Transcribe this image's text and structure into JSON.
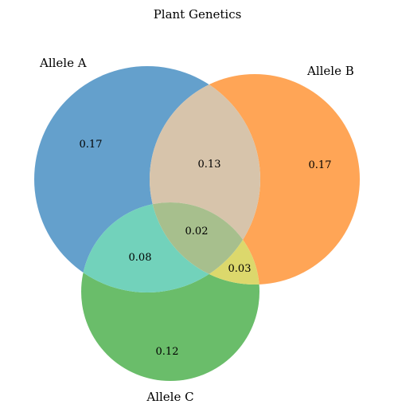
{
  "chart_data": {
    "type": "venn",
    "title": "Plant Genetics",
    "sets": [
      {
        "name": "Allele A",
        "color": "#1f77b4"
      },
      {
        "name": "Allele B",
        "color": "#ff7f0e"
      },
      {
        "name": "Allele C",
        "color": "#2ca02c"
      }
    ],
    "regions": [
      {
        "id": "A",
        "label": "0.17",
        "value": 0.17,
        "color": "#64a0cc"
      },
      {
        "id": "B",
        "label": "0.17",
        "value": 0.17,
        "color": "#ffa556"
      },
      {
        "id": "C",
        "label": "0.12",
        "value": 0.12,
        "color": "#6abd6a"
      },
      {
        "id": "AB",
        "label": "0.13",
        "value": 0.13,
        "color": "#d7c4ab"
      },
      {
        "id": "AC",
        "label": "0.08",
        "value": 0.08,
        "color": "#72d2bb"
      },
      {
        "id": "BC",
        "label": "0.03",
        "value": 0.03,
        "color": "#dcd86c"
      },
      {
        "id": "ABC",
        "label": "0.02",
        "value": 0.02,
        "color": "#a7bf8d"
      }
    ]
  }
}
